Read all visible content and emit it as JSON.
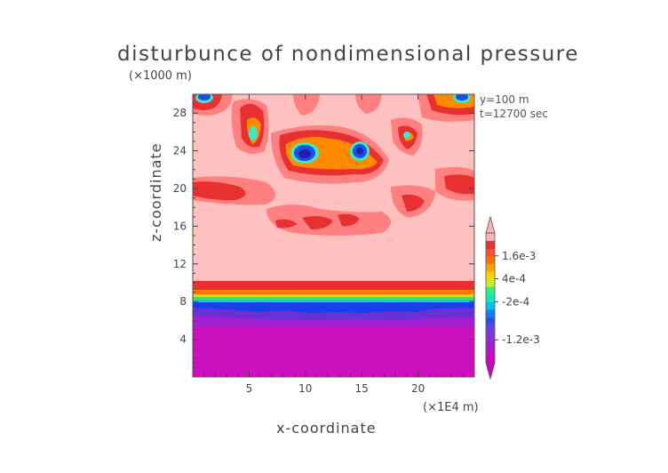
{
  "chart_data": {
    "type": "heatmap",
    "title": "disturbunce of nondimensional pressure",
    "xlabel": "x-coordinate",
    "ylabel": "z-coordinate",
    "x_unit": "(×1E4 m)",
    "y_unit": "(×1000 m)",
    "annotations": [
      "y=100 m",
      "t=12700 sec"
    ],
    "xlim": [
      0,
      25
    ],
    "ylim": [
      0,
      30
    ],
    "x_ticks": [
      5,
      10,
      15,
      20
    ],
    "y_ticks": [
      4,
      8,
      12,
      16,
      20,
      24,
      28
    ],
    "colorbar": {
      "labels": [
        {
          "text": "1.6e-3",
          "value": 0.0016
        },
        {
          "text": "4e-4",
          "value": 0.0004
        },
        {
          "text": "-2e-4",
          "value": -0.0002
        },
        {
          "text": "-1.2e-3",
          "value": -0.0012
        }
      ],
      "colors": [
        "#d000c0",
        "#c010cc",
        "#a020d0",
        "#8830d8",
        "#6a40e0",
        "#3050e8",
        "#1080f0",
        "#00c0f0",
        "#10e8c0",
        "#30f080",
        "#c8f020",
        "#ffd000",
        "#ffa000",
        "#ff7000",
        "#ff5030",
        "#e83030",
        "#ffb0b0"
      ]
    },
    "grid": false
  }
}
